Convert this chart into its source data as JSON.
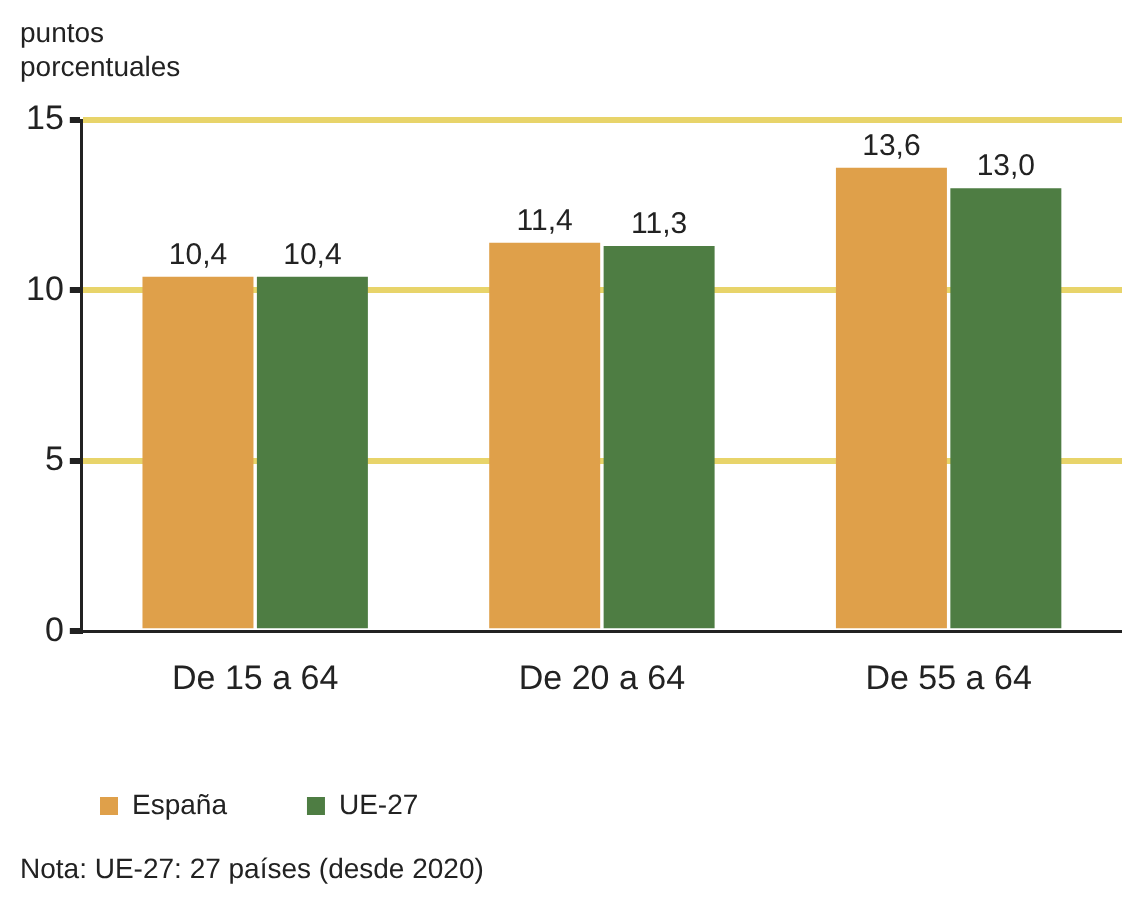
{
  "chart_data": {
    "type": "bar",
    "ylabel": "puntos porcentuales",
    "categories": [
      "De 15 a 64",
      "De 20 a 64",
      "De 55 a 64"
    ],
    "series": [
      {
        "name": "España",
        "color": "#dfa04a",
        "values": [
          10.4,
          11.4,
          13.6
        ],
        "value_labels": [
          "10,4",
          "11,4",
          "13,6"
        ]
      },
      {
        "name": "UE-27",
        "color": "#4e7d43",
        "values": [
          10.4,
          11.3,
          13.0
        ],
        "value_labels": [
          "10,4",
          "11,3",
          "13,0"
        ]
      }
    ],
    "ylim": [
      0,
      15
    ],
    "yticks": [
      0,
      5,
      10,
      15
    ],
    "grid": "y",
    "legend": "bottom",
    "annotations": [
      "Nota: UE-27: 27 países (desde 2020)"
    ]
  }
}
